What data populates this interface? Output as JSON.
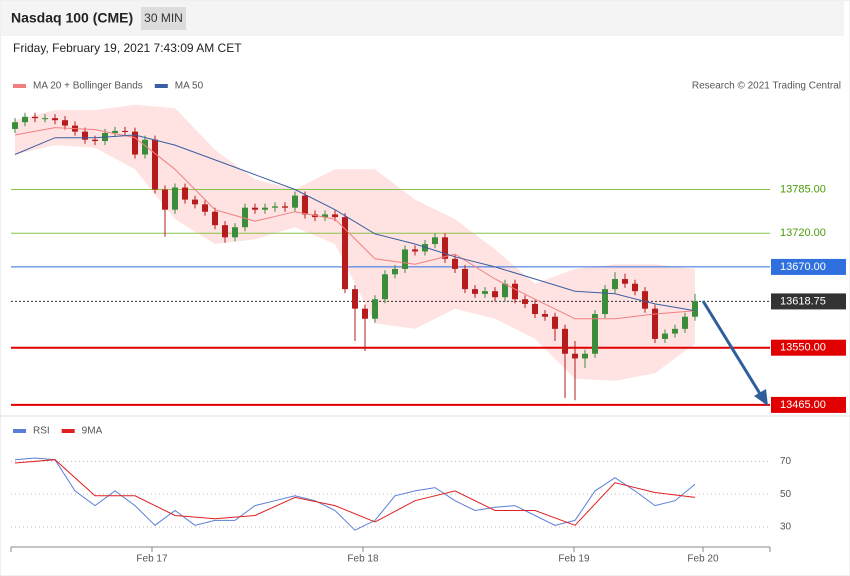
{
  "header": {
    "title": "Nasdaq 100 (CME)",
    "interval": "30 MIN",
    "date": "Friday, February 19, 2021 7:43:09 AM CET"
  },
  "chart_data": [
    {
      "type": "candlestick",
      "credit": "Research © 2021 Trading Central",
      "xlim": [
        -0.4,
        75.5
      ],
      "ylim": [
        13450,
        13918
      ],
      "up_color": "#3b8c3b",
      "down_color": "#b71c1c",
      "x": [
        0,
        1,
        2,
        3,
        4,
        5,
        6,
        7,
        8,
        9,
        10,
        11,
        12,
        13,
        14,
        15,
        16,
        17,
        18,
        19,
        20,
        21,
        22,
        23,
        24,
        25,
        26,
        27,
        28,
        29,
        30,
        31,
        32,
        33,
        34,
        35,
        36,
        37,
        38,
        39,
        40,
        41,
        42,
        43,
        44,
        45,
        46,
        47,
        48,
        49,
        50,
        51,
        52,
        53,
        54,
        55,
        56,
        57,
        58,
        59,
        60,
        61,
        62,
        63,
        64,
        65,
        66,
        67,
        68
      ],
      "open": [
        13875,
        13885,
        13893,
        13891,
        13891,
        13888,
        13880,
        13871,
        13859,
        13857,
        13869,
        13872,
        13871,
        13837,
        13859,
        13785,
        13755,
        13788,
        13770,
        13763,
        13752,
        13732,
        13714,
        13729,
        13758,
        13755,
        13758,
        13760,
        13758,
        13776,
        13748,
        13744,
        13748,
        13744,
        13637,
        13608,
        13593,
        13622,
        13659,
        13667,
        13696,
        13693,
        13704,
        13714,
        13682,
        13667,
        13637,
        13630,
        13634,
        13625,
        13645,
        13622,
        13615,
        13600,
        13596,
        13578,
        13541,
        13534,
        13541,
        13600,
        13637,
        13652,
        13645,
        13634,
        13608,
        13563,
        13571,
        13578,
        13596
      ],
      "high": [
        13891,
        13899,
        13899,
        13897,
        13897,
        13894,
        13886,
        13877,
        13865,
        13875,
        13878,
        13878,
        13877,
        13865,
        13865,
        13791,
        13794,
        13794,
        13776,
        13769,
        13758,
        13738,
        13735,
        13764,
        13764,
        13764,
        13766,
        13766,
        13782,
        13782,
        13754,
        13754,
        13754,
        13750,
        13643,
        13614,
        13628,
        13665,
        13673,
        13702,
        13702,
        13710,
        13720,
        13720,
        13688,
        13673,
        13643,
        13640,
        13640,
        13651,
        13651,
        13628,
        13621,
        13606,
        13602,
        13584,
        13560,
        13547,
        13606,
        13643,
        13662,
        13660,
        13651,
        13640,
        13614,
        13577,
        13584,
        13602,
        13630
      ],
      "low": [
        13869,
        13879,
        13885,
        13885,
        13882,
        13874,
        13865,
        13853,
        13851,
        13851,
        13863,
        13865,
        13831,
        13831,
        13779,
        13715,
        13749,
        13764,
        13757,
        13746,
        13726,
        13706,
        13708,
        13723,
        13749,
        13749,
        13752,
        13752,
        13752,
        13742,
        13738,
        13738,
        13738,
        13631,
        13560,
        13545,
        13587,
        13616,
        13653,
        13661,
        13687,
        13687,
        13698,
        13676,
        13661,
        13631,
        13624,
        13624,
        13619,
        13619,
        13616,
        13609,
        13594,
        13590,
        13560,
        13475,
        13472,
        13520,
        13535,
        13594,
        13631,
        13639,
        13628,
        13602,
        13557,
        13557,
        13565,
        13572,
        13590
      ],
      "close": [
        13885,
        13893,
        13891,
        13891,
        13888,
        13880,
        13871,
        13859,
        13857,
        13869,
        13872,
        13871,
        13837,
        13859,
        13785,
        13755,
        13788,
        13770,
        13763,
        13752,
        13732,
        13714,
        13729,
        13758,
        13755,
        13758,
        13760,
        13758,
        13776,
        13748,
        13744,
        13748,
        13744,
        13637,
        13608,
        13593,
        13622,
        13659,
        13667,
        13696,
        13693,
        13704,
        13714,
        13682,
        13667,
        13637,
        13630,
        13634,
        13625,
        13645,
        13622,
        13615,
        13600,
        13596,
        13578,
        13541,
        13534,
        13541,
        13600,
        13637,
        13652,
        13645,
        13634,
        13608,
        13563,
        13571,
        13578,
        13596,
        13619
      ],
      "series": [
        {
          "name": "MA 20 + Bollinger Bands",
          "color": "#f08080",
          "band_color": "#ffd6d6",
          "x": [
            0,
            4,
            8,
            12,
            16,
            20,
            24,
            28,
            32,
            36,
            40,
            44,
            48,
            52,
            56,
            60,
            64,
            68
          ],
          "values": [
            13866,
            13877,
            13874,
            13862,
            13815,
            13755,
            13738,
            13752,
            13741,
            13682,
            13674,
            13689,
            13652,
            13622,
            13593,
            13593,
            13600,
            13605
          ],
          "upper": [
            13888,
            13903,
            13903,
            13911,
            13906,
            13844,
            13800,
            13785,
            13815,
            13815,
            13770,
            13741,
            13696,
            13645,
            13667,
            13674,
            13674,
            13667
          ],
          "lower": [
            13837,
            13851,
            13847,
            13815,
            13741,
            13704,
            13711,
            13729,
            13704,
            13586,
            13578,
            13608,
            13593,
            13563,
            13504,
            13501,
            13512,
            13556
          ]
        },
        {
          "name": "MA 50",
          "color": "#3a5fa0",
          "x": [
            0,
            4,
            8,
            12,
            16,
            20,
            24,
            28,
            32,
            36,
            40,
            44,
            48,
            52,
            56,
            60,
            64,
            68
          ],
          "values": [
            13837,
            13862,
            13862,
            13866,
            13851,
            13829,
            13807,
            13785,
            13755,
            13719,
            13704,
            13685,
            13670,
            13652,
            13634,
            13630,
            13615,
            13605
          ]
        }
      ],
      "levels": [
        {
          "value": 13785,
          "label": "13785.00",
          "color": "#8bc34a",
          "text_color": "#4a9a0a",
          "box": false,
          "width": 1
        },
        {
          "value": 13720,
          "label": "13720.00",
          "color": "#8bc34a",
          "text_color": "#4a9a0a",
          "box": false,
          "width": 1
        },
        {
          "value": 13670,
          "label": "13670.00",
          "color": "#2f6fde",
          "text_color": "#ffffff",
          "box": true,
          "width": 1
        },
        {
          "value": 13618.75,
          "label": "13618.75",
          "color": "#333333",
          "text_color": "#ffffff",
          "box": true,
          "width": 1,
          "dotted": true
        },
        {
          "value": 13550,
          "label": "13550.00",
          "color": "#e00000",
          "text_color": "#ffffff",
          "box": true,
          "width": 2
        },
        {
          "value": 13465,
          "label": "13465.00",
          "color": "#e00000",
          "text_color": "#ffffff",
          "box": true,
          "width": 2
        }
      ]
    },
    {
      "type": "line",
      "xlim": [
        -0.4,
        75.5
      ],
      "ylim": [
        19,
        83
      ],
      "yticks": [
        30,
        50,
        70
      ],
      "grid": true,
      "xticks": [
        {
          "value": 13.7,
          "label": "Feb 17"
        },
        {
          "value": 34.8,
          "label": "Feb 18"
        },
        {
          "value": 55.9,
          "label": "Feb 19"
        },
        {
          "value": 68.8,
          "label": "Feb 20"
        }
      ],
      "series": [
        {
          "name": "RSI",
          "color": "#5b7fd6",
          "x": [
            0,
            2,
            4,
            6,
            8,
            10,
            12,
            14,
            16,
            18,
            20,
            22,
            24,
            26,
            28,
            30,
            32,
            34,
            36,
            38,
            40,
            42,
            44,
            46,
            48,
            50,
            52,
            54,
            56,
            58,
            60,
            62,
            64,
            66,
            68
          ],
          "values": [
            71,
            72,
            71,
            52,
            43,
            52,
            43,
            31,
            40,
            31,
            34,
            34,
            43,
            46,
            49,
            46,
            40,
            28,
            34,
            49,
            52,
            54,
            46,
            40,
            42,
            43,
            37,
            31,
            34,
            52,
            60,
            52,
            43,
            46,
            56
          ]
        },
        {
          "name": "9MA",
          "color": "#e02020",
          "x": [
            0,
            4,
            8,
            12,
            16,
            20,
            24,
            28,
            32,
            36,
            40,
            44,
            48,
            52,
            56,
            60,
            64,
            68
          ],
          "values": [
            69,
            71,
            49,
            49,
            37,
            35,
            37,
            48,
            43,
            33,
            46,
            52,
            40,
            40,
            31,
            57,
            51,
            48
          ]
        }
      ]
    }
  ]
}
